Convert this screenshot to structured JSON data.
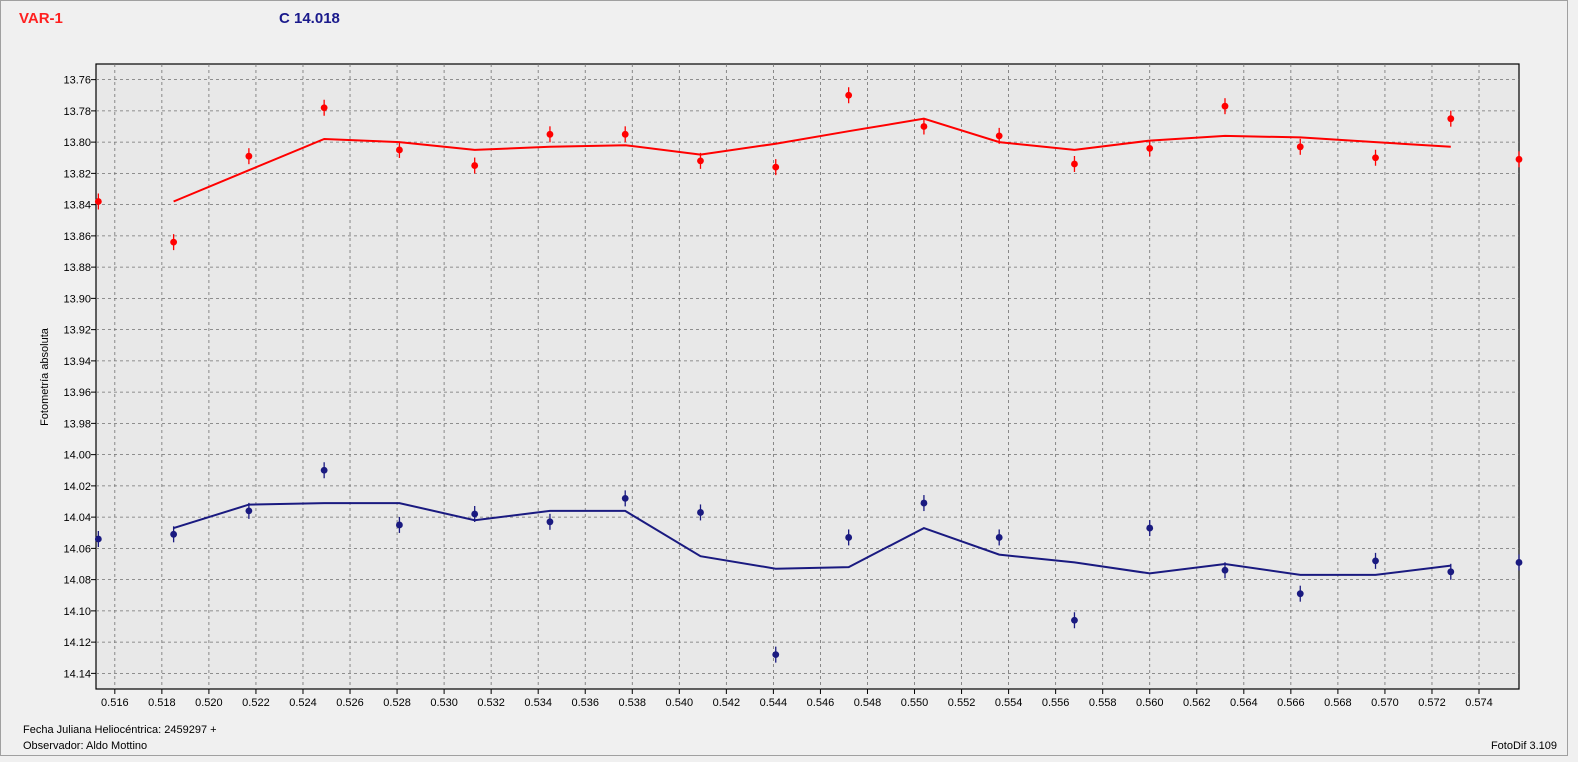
{
  "header": {
    "var_label": "VAR-1",
    "comp_label": "C 14.018",
    "var_color": "#ff0000",
    "comp_color": "#1a1a80"
  },
  "footer": {
    "date_text": "Fecha Juliana Heliocéntrica: 2459297 +",
    "observer_text": "Observador: Aldo Mottino",
    "version_text": "FotoDif 3.109"
  },
  "chart_data": {
    "type": "scatter",
    "ylabel": "Fotometría absoluta",
    "y_inverted": true,
    "xlim": [
      0.5152,
      0.5757
    ],
    "ylim": [
      13.75,
      14.15
    ],
    "x_ticks": [
      "0.516",
      "0.518",
      "0.520",
      "0.522",
      "0.524",
      "0.526",
      "0.528",
      "0.530",
      "0.532",
      "0.534",
      "0.536",
      "0.538",
      "0.540",
      "0.542",
      "0.544",
      "0.546",
      "0.548",
      "0.550",
      "0.552",
      "0.554",
      "0.556",
      "0.558",
      "0.560",
      "0.562",
      "0.564",
      "0.566",
      "0.568",
      "0.570",
      "0.572",
      "0.574"
    ],
    "y_ticks": [
      "13.76",
      "13.78",
      "13.80",
      "13.82",
      "13.84",
      "13.86",
      "13.88",
      "13.90",
      "13.92",
      "13.94",
      "13.96",
      "13.98",
      "14.00",
      "14.02",
      "14.04",
      "14.06",
      "14.08",
      "14.10",
      "14.12",
      "14.14"
    ],
    "grid": true,
    "series": [
      {
        "key": "var",
        "color": "#ff0000",
        "points": [
          {
            "x": 0.5153,
            "y": 13.838
          },
          {
            "x": 0.5185,
            "y": 13.864
          },
          {
            "x": 0.5217,
            "y": 13.809
          },
          {
            "x": 0.5249,
            "y": 13.778
          },
          {
            "x": 0.5281,
            "y": 13.805
          },
          {
            "x": 0.5313,
            "y": 13.815
          },
          {
            "x": 0.5345,
            "y": 13.795
          },
          {
            "x": 0.5377,
            "y": 13.795
          },
          {
            "x": 0.5409,
            "y": 13.812
          },
          {
            "x": 0.5441,
            "y": 13.816
          },
          {
            "x": 0.5472,
            "y": 13.77
          },
          {
            "x": 0.5504,
            "y": 13.79
          },
          {
            "x": 0.5536,
            "y": 13.796
          },
          {
            "x": 0.5568,
            "y": 13.814
          },
          {
            "x": 0.56,
            "y": 13.804
          },
          {
            "x": 0.5632,
            "y": 13.777
          },
          {
            "x": 0.5664,
            "y": 13.803
          },
          {
            "x": 0.5696,
            "y": 13.81
          },
          {
            "x": 0.5728,
            "y": 13.785
          },
          {
            "x": 0.5757,
            "y": 13.811
          }
        ],
        "trend": [
          {
            "x": 0.5185,
            "y": 13.838
          },
          {
            "x": 0.5217,
            "y": 13.818
          },
          {
            "x": 0.5249,
            "y": 13.798
          },
          {
            "x": 0.5281,
            "y": 13.8
          },
          {
            "x": 0.5313,
            "y": 13.805
          },
          {
            "x": 0.5345,
            "y": 13.803
          },
          {
            "x": 0.5377,
            "y": 13.802
          },
          {
            "x": 0.5409,
            "y": 13.808
          },
          {
            "x": 0.5441,
            "y": 13.801
          },
          {
            "x": 0.5472,
            "y": 13.793
          },
          {
            "x": 0.5504,
            "y": 13.785
          },
          {
            "x": 0.5536,
            "y": 13.8
          },
          {
            "x": 0.5568,
            "y": 13.805
          },
          {
            "x": 0.56,
            "y": 13.799
          },
          {
            "x": 0.5632,
            "y": 13.796
          },
          {
            "x": 0.5664,
            "y": 13.797
          },
          {
            "x": 0.5696,
            "y": 13.8
          },
          {
            "x": 0.5728,
            "y": 13.803
          }
        ]
      },
      {
        "key": "comp",
        "color": "#1a1a80",
        "points": [
          {
            "x": 0.5153,
            "y": 14.054
          },
          {
            "x": 0.5185,
            "y": 14.051
          },
          {
            "x": 0.5217,
            "y": 14.036
          },
          {
            "x": 0.5249,
            "y": 14.01
          },
          {
            "x": 0.5281,
            "y": 14.045
          },
          {
            "x": 0.5313,
            "y": 14.038
          },
          {
            "x": 0.5345,
            "y": 14.043
          },
          {
            "x": 0.5377,
            "y": 14.028
          },
          {
            "x": 0.5409,
            "y": 14.037
          },
          {
            "x": 0.5441,
            "y": 14.128
          },
          {
            "x": 0.5472,
            "y": 14.053
          },
          {
            "x": 0.5504,
            "y": 14.031
          },
          {
            "x": 0.5536,
            "y": 14.053
          },
          {
            "x": 0.5568,
            "y": 14.106
          },
          {
            "x": 0.56,
            "y": 14.047
          },
          {
            "x": 0.5632,
            "y": 14.074
          },
          {
            "x": 0.5664,
            "y": 14.089
          },
          {
            "x": 0.5696,
            "y": 14.068
          },
          {
            "x": 0.5728,
            "y": 14.075
          },
          {
            "x": 0.5757,
            "y": 14.069
          }
        ],
        "trend": [
          {
            "x": 0.5185,
            "y": 14.047
          },
          {
            "x": 0.5217,
            "y": 14.032
          },
          {
            "x": 0.5249,
            "y": 14.031
          },
          {
            "x": 0.5281,
            "y": 14.031
          },
          {
            "x": 0.5313,
            "y": 14.042
          },
          {
            "x": 0.5345,
            "y": 14.036
          },
          {
            "x": 0.5377,
            "y": 14.036
          },
          {
            "x": 0.5409,
            "y": 14.065
          },
          {
            "x": 0.5441,
            "y": 14.073
          },
          {
            "x": 0.5472,
            "y": 14.072
          },
          {
            "x": 0.5504,
            "y": 14.047
          },
          {
            "x": 0.5536,
            "y": 14.064
          },
          {
            "x": 0.5568,
            "y": 14.069
          },
          {
            "x": 0.56,
            "y": 14.076
          },
          {
            "x": 0.5632,
            "y": 14.07
          },
          {
            "x": 0.5664,
            "y": 14.077
          },
          {
            "x": 0.5696,
            "y": 14.077
          },
          {
            "x": 0.5728,
            "y": 14.071
          }
        ]
      }
    ]
  }
}
